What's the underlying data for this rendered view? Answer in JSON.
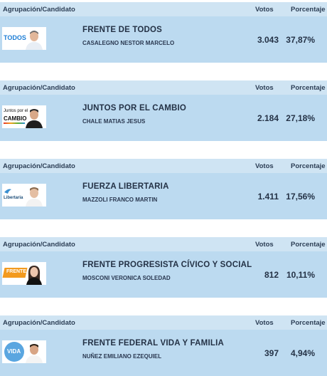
{
  "header": {
    "col_name": "Agrupación/Candidato",
    "col_votes": "Votos",
    "col_pct": "Porcentaje"
  },
  "rows": [
    {
      "party": "FRENTE DE TODOS",
      "candidate": "CASALEGNO NESTOR MARCELO",
      "votes": "3.043",
      "pct": "37,87%",
      "logo_text": "TODOS",
      "logo_color": "#1d7ed6"
    },
    {
      "party": "JUNTOS POR EL CAMBIO",
      "candidate": "CHALE MATIAS JESUS",
      "votes": "2.184",
      "pct": "27,18%",
      "logo_text_1": "Juntos por el",
      "logo_text_2": "CAMBIO",
      "logo_color": "#111111"
    },
    {
      "party": "FUERZA LIBERTARIA",
      "candidate": "MAZZOLI FRANCO MARTIN",
      "votes": "1.411",
      "pct": "17,56%",
      "logo_text": "Libertaria",
      "logo_color": "#1e4f7a"
    },
    {
      "party": "FRENTE PROGRESISTA CÍVICO Y SOCIAL",
      "candidate": "MOSCONI VERONICA SOLEDAD",
      "votes": "812",
      "pct": "10,11%",
      "logo_text": "FRENTE",
      "logo_color": "#f39a1e"
    },
    {
      "party": "FRENTE FEDERAL VIDA Y FAMILIA",
      "candidate": "NUÑEZ EMILIANO EZEQUIEL",
      "votes": "397",
      "pct": "4,94%",
      "logo_text": "VIDA",
      "logo_color": "#5aa6e0"
    }
  ]
}
